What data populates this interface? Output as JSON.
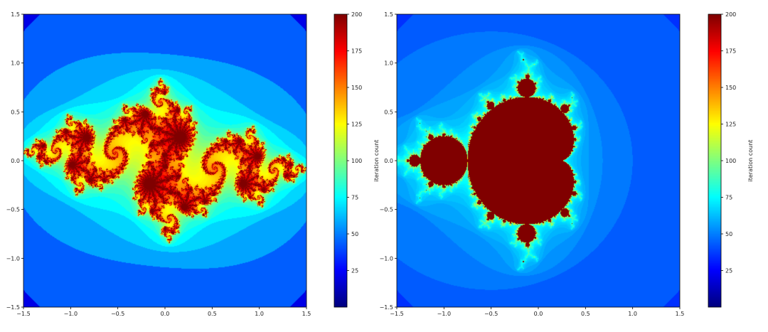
{
  "chart_data": [
    {
      "type": "heatmap",
      "fractal": "julia",
      "c": [
        -0.8,
        0.156
      ],
      "max_iter": 200,
      "colormap": "jet",
      "xlim": [
        -1.5,
        1.5
      ],
      "ylim": [
        -1.5,
        1.5
      ],
      "xticks": [
        "−1.5",
        "−1.0",
        "−0.5",
        "0.0",
        "0.5",
        "1.0",
        "1.5"
      ],
      "yticks": [
        "1.5",
        "1.0",
        "0.5",
        "0.0",
        "−0.5",
        "−1.0",
        "−1.5"
      ],
      "colorbar": {
        "label": "iteration count",
        "ticks": [
          "200",
          "175",
          "150",
          "125",
          "100",
          "75",
          "50",
          "25"
        ],
        "range": [
          0,
          200
        ]
      }
    },
    {
      "type": "heatmap",
      "fractal": "mandelbrot",
      "max_iter": 200,
      "colormap": "jet",
      "xlim": [
        -1.5,
        1.5
      ],
      "ylim": [
        -1.5,
        1.5
      ],
      "xticks": [
        "−1.5",
        "−1.0",
        "−0.5",
        "0.0",
        "0.5",
        "1.0",
        "1.5"
      ],
      "yticks": [
        "1.5",
        "1.0",
        "0.5",
        "0.0",
        "−0.5",
        "−1.0",
        "−1.5"
      ],
      "colorbar": {
        "label": "iteration count",
        "ticks": [
          "200",
          "175",
          "150",
          "125",
          "100",
          "75",
          "50",
          "25"
        ],
        "range": [
          0,
          200
        ]
      }
    }
  ]
}
